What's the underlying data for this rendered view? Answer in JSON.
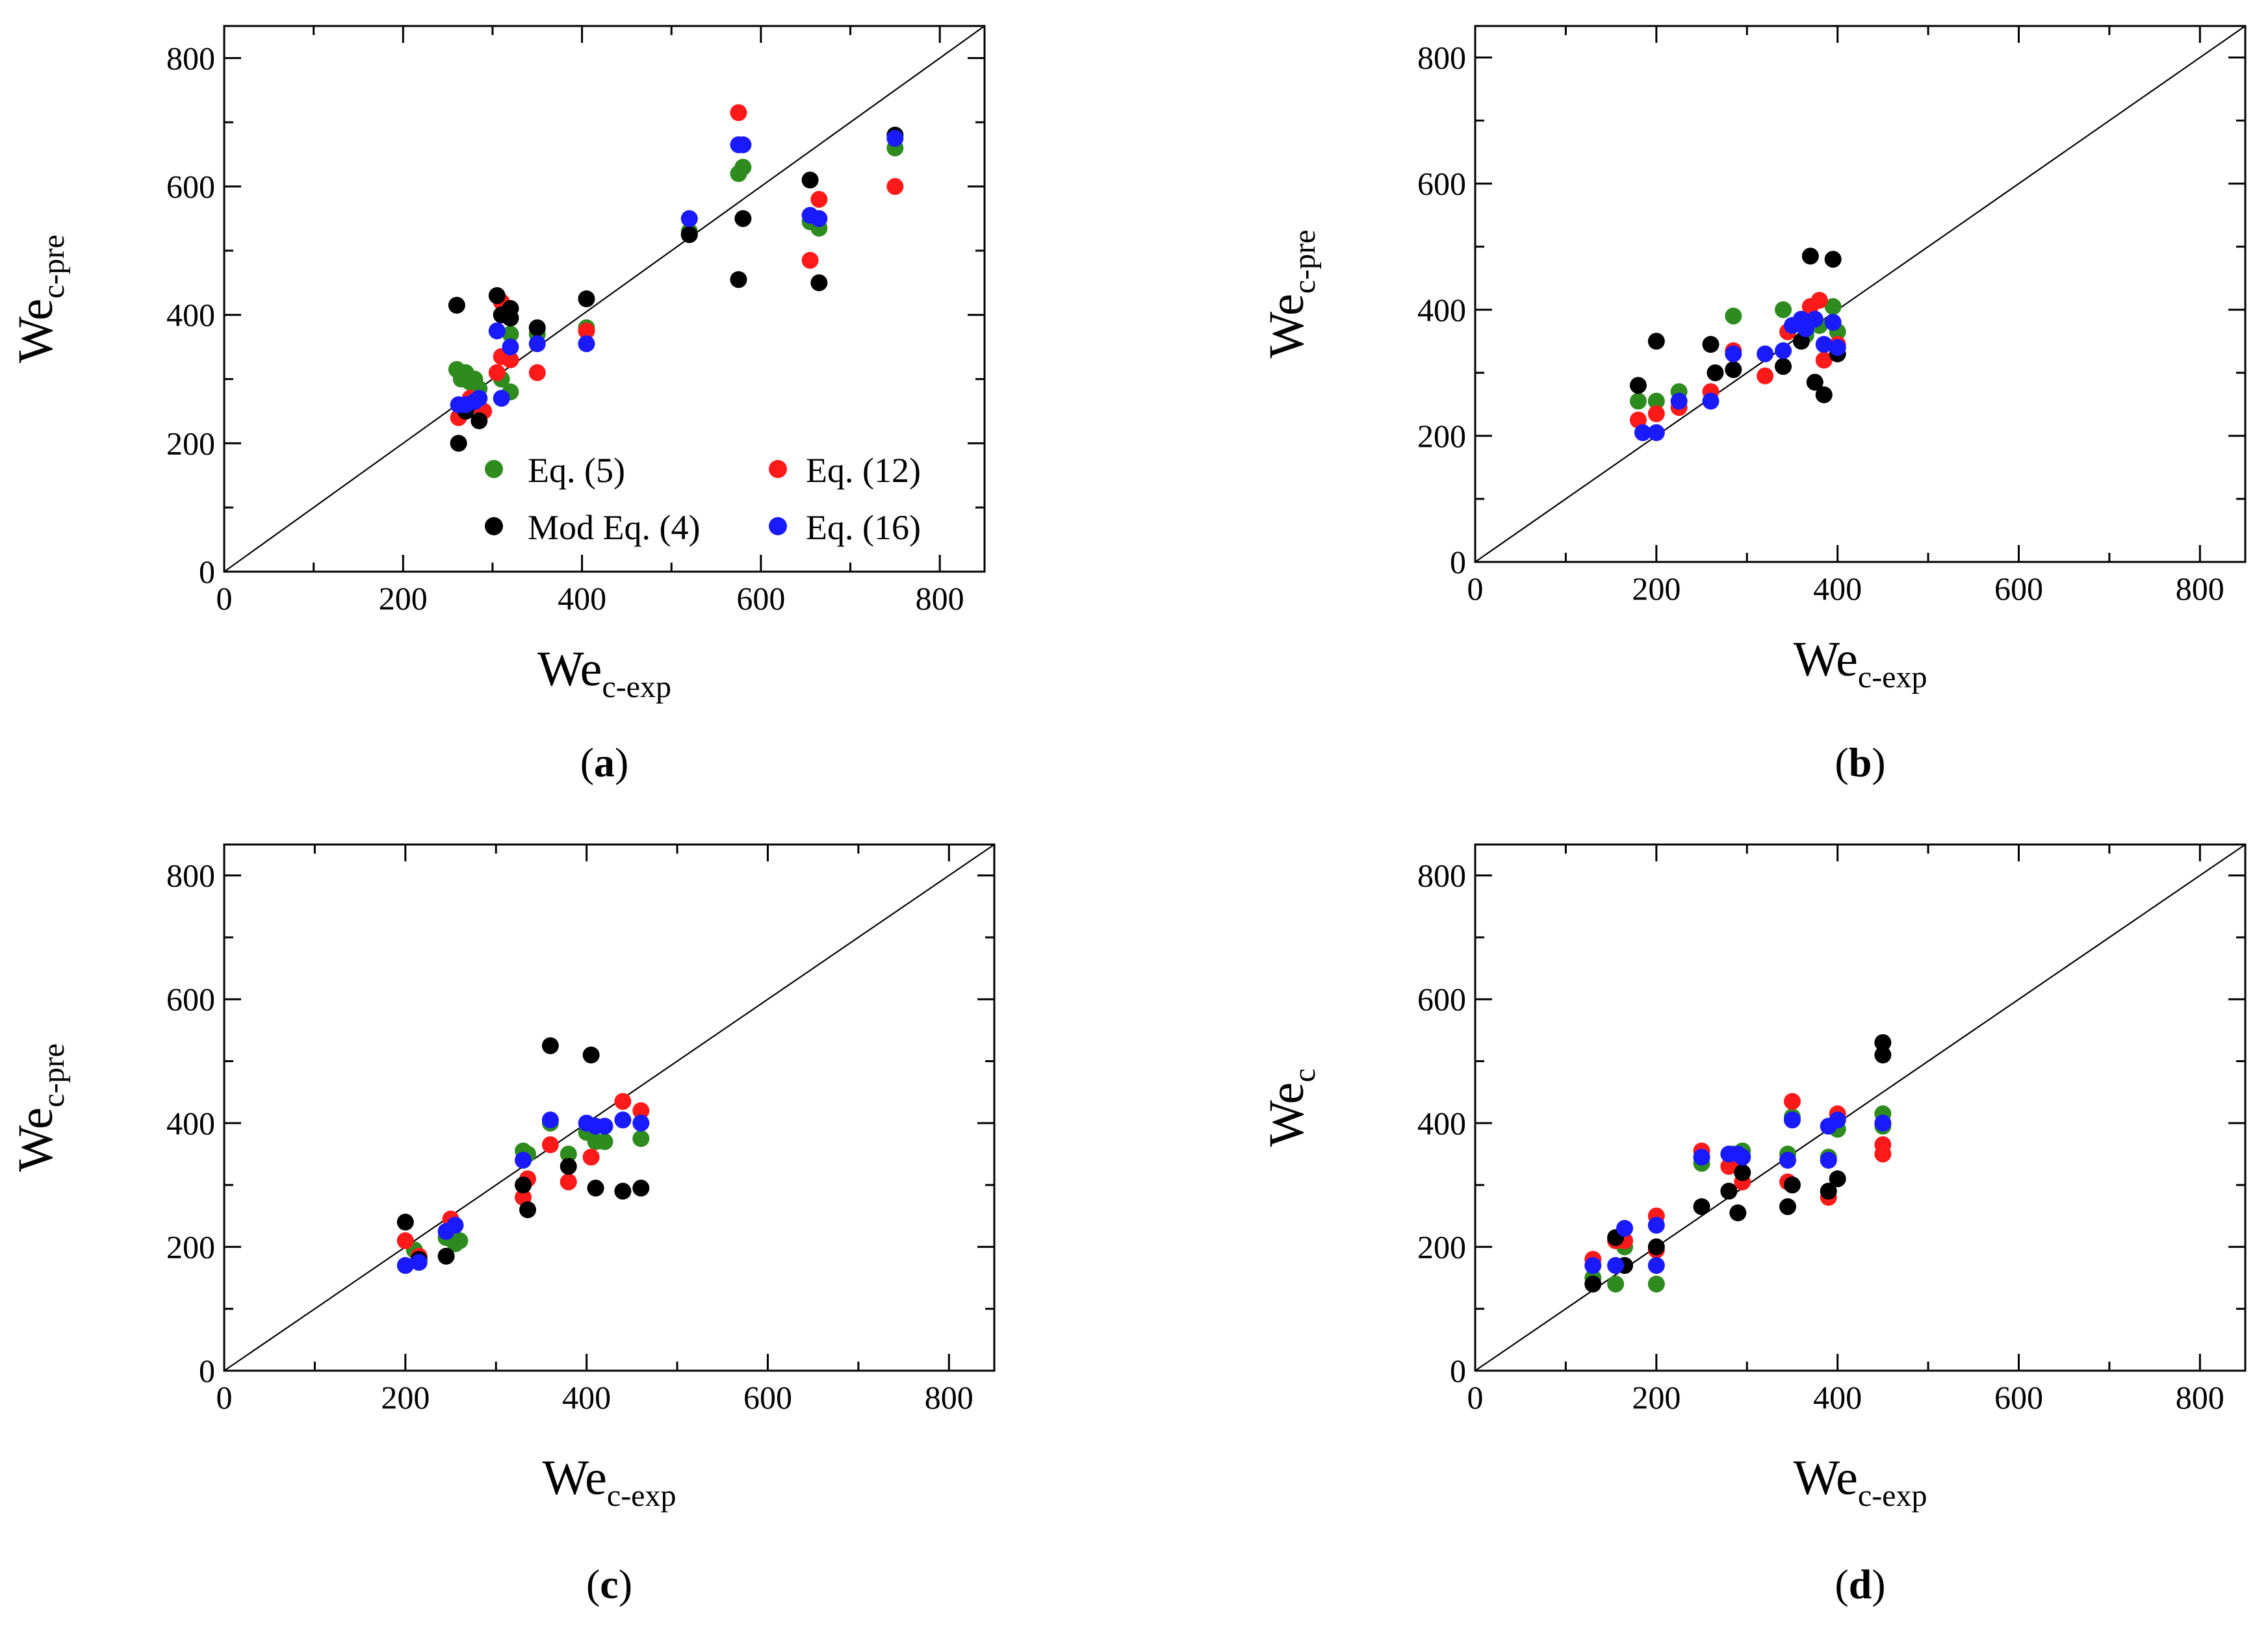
{
  "colors": {
    "eq5": "#2e8b1e",
    "eq12": "#ff1a1a",
    "mod4": "#000000",
    "eq16": "#1a1aff"
  },
  "legend": [
    {
      "key": "eq5",
      "label": "Eq. (5)"
    },
    {
      "key": "eq12",
      "label": "Eq. (12)"
    },
    {
      "key": "mod4",
      "label": "Mod Eq. (4)"
    },
    {
      "key": "eq16",
      "label": "Eq. (16)"
    }
  ],
  "chart_data": [
    {
      "type": "scatter",
      "panel_label": "a",
      "xlabel": {
        "main": "We",
        "sub": "c-exp"
      },
      "ylabel": {
        "main": "We",
        "sub": "c-pre"
      },
      "xlim": [
        0,
        850
      ],
      "ylim": [
        0,
        850
      ],
      "ticks": [
        "0",
        "200",
        "400",
        "600",
        "800"
      ],
      "legend_position": "bottom-right",
      "series": [
        {
          "name": "Eq. (5)",
          "key": "eq5",
          "points": [
            [
              260,
              315
            ],
            [
              265,
              300
            ],
            [
              270,
              310
            ],
            [
              275,
              295
            ],
            [
              280,
              300
            ],
            [
              285,
              285
            ],
            [
              310,
              300
            ],
            [
              320,
              280
            ],
            [
              320,
              370
            ],
            [
              350,
              370
            ],
            [
              405,
              380
            ],
            [
              520,
              530
            ],
            [
              575,
              620
            ],
            [
              580,
              630
            ],
            [
              655,
              545
            ],
            [
              665,
              535
            ],
            [
              750,
              660
            ]
          ]
        },
        {
          "name": "Eq. (12)",
          "key": "eq12",
          "points": [
            [
              262,
              240
            ],
            [
              275,
              270
            ],
            [
              280,
              260
            ],
            [
              290,
              250
            ],
            [
              305,
              310
            ],
            [
              310,
              335
            ],
            [
              310,
              420
            ],
            [
              320,
              330
            ],
            [
              350,
              310
            ],
            [
              405,
              375
            ],
            [
              520,
              525
            ],
            [
              575,
              715
            ],
            [
              655,
              485
            ],
            [
              665,
              580
            ],
            [
              750,
              600
            ]
          ]
        },
        {
          "name": "Mod Eq. (4)",
          "key": "mod4",
          "points": [
            [
              260,
              415
            ],
            [
              262,
              200
            ],
            [
              270,
              250
            ],
            [
              285,
              235
            ],
            [
              305,
              430
            ],
            [
              310,
              400
            ],
            [
              320,
              410
            ],
            [
              320,
              395
            ],
            [
              350,
              380
            ],
            [
              405,
              425
            ],
            [
              520,
              525
            ],
            [
              575,
              455
            ],
            [
              580,
              550
            ],
            [
              655,
              610
            ],
            [
              665,
              450
            ],
            [
              750,
              680
            ]
          ]
        },
        {
          "name": "Eq. (16)",
          "key": "eq16",
          "points": [
            [
              262,
              260
            ],
            [
              270,
              260
            ],
            [
              280,
              265
            ],
            [
              285,
              270
            ],
            [
              305,
              375
            ],
            [
              310,
              270
            ],
            [
              320,
              350
            ],
            [
              350,
              355
            ],
            [
              405,
              355
            ],
            [
              520,
              550
            ],
            [
              575,
              665
            ],
            [
              580,
              665
            ],
            [
              655,
              555
            ],
            [
              665,
              550
            ],
            [
              750,
              675
            ]
          ]
        }
      ]
    },
    {
      "type": "scatter",
      "panel_label": "b",
      "xlabel": {
        "main": "We",
        "sub": "c-exp"
      },
      "ylabel": {
        "main": "We",
        "sub": "c-pre"
      },
      "xlim": [
        0,
        850
      ],
      "ylim": [
        0,
        850
      ],
      "ticks": [
        "0",
        "200",
        "400",
        "600",
        "800"
      ],
      "series": [
        {
          "name": "Eq. (5)",
          "key": "eq5",
          "points": [
            [
              180,
              255
            ],
            [
              200,
              255
            ],
            [
              225,
              270
            ],
            [
              285,
              390
            ],
            [
              340,
              400
            ],
            [
              360,
              385
            ],
            [
              365,
              360
            ],
            [
              380,
              375
            ],
            [
              395,
              405
            ],
            [
              400,
              365
            ]
          ]
        },
        {
          "name": "Eq. (12)",
          "key": "eq12",
          "points": [
            [
              180,
              225
            ],
            [
              200,
              235
            ],
            [
              225,
              245
            ],
            [
              260,
              270
            ],
            [
              285,
              335
            ],
            [
              320,
              295
            ],
            [
              345,
              365
            ],
            [
              360,
              380
            ],
            [
              370,
              405
            ],
            [
              380,
              415
            ],
            [
              385,
              320
            ],
            [
              400,
              345
            ]
          ]
        },
        {
          "name": "Mod Eq. (4)",
          "key": "mod4",
          "points": [
            [
              180,
              280
            ],
            [
              200,
              350
            ],
            [
              260,
              345
            ],
            [
              265,
              300
            ],
            [
              285,
              305
            ],
            [
              340,
              310
            ],
            [
              360,
              350
            ],
            [
              370,
              485
            ],
            [
              375,
              285
            ],
            [
              385,
              265
            ],
            [
              395,
              480
            ],
            [
              400,
              330
            ]
          ]
        },
        {
          "name": "Eq. (16)",
          "key": "eq16",
          "points": [
            [
              185,
              205
            ],
            [
              200,
              205
            ],
            [
              225,
              255
            ],
            [
              260,
              255
            ],
            [
              285,
              330
            ],
            [
              320,
              330
            ],
            [
              340,
              335
            ],
            [
              350,
              375
            ],
            [
              360,
              385
            ],
            [
              365,
              370
            ],
            [
              375,
              385
            ],
            [
              385,
              345
            ],
            [
              395,
              380
            ],
            [
              400,
              340
            ]
          ]
        }
      ]
    },
    {
      "type": "scatter",
      "panel_label": "c",
      "xlabel": {
        "main": "We",
        "sub": "c-exp"
      },
      "ylabel": {
        "main": "We",
        "sub": "c-pre"
      },
      "xlim": [
        0,
        850
      ],
      "ylim": [
        0,
        850
      ],
      "ticks": [
        "0",
        "200",
        "400",
        "600",
        "800"
      ],
      "series": [
        {
          "name": "Eq. (5)",
          "key": "eq5",
          "points": [
            [
              210,
              195
            ],
            [
              245,
              215
            ],
            [
              255,
              205
            ],
            [
              260,
              210
            ],
            [
              330,
              355
            ],
            [
              335,
              350
            ],
            [
              360,
              400
            ],
            [
              380,
              350
            ],
            [
              400,
              385
            ],
            [
              410,
              370
            ],
            [
              420,
              370
            ],
            [
              460,
              375
            ]
          ]
        },
        {
          "name": "Eq. (12)",
          "key": "eq12",
          "points": [
            [
              200,
              210
            ],
            [
              215,
              185
            ],
            [
              250,
              245
            ],
            [
              330,
              280
            ],
            [
              335,
              310
            ],
            [
              360,
              365
            ],
            [
              380,
              305
            ],
            [
              405,
              345
            ],
            [
              440,
              435
            ],
            [
              460,
              420
            ]
          ]
        },
        {
          "name": "Mod Eq. (4)",
          "key": "mod4",
          "points": [
            [
              200,
              240
            ],
            [
              215,
              180
            ],
            [
              245,
              185
            ],
            [
              330,
              300
            ],
            [
              335,
              260
            ],
            [
              360,
              525
            ],
            [
              380,
              330
            ],
            [
              405,
              510
            ],
            [
              410,
              295
            ],
            [
              440,
              290
            ],
            [
              460,
              295
            ]
          ]
        },
        {
          "name": "Eq. (16)",
          "key": "eq16",
          "points": [
            [
              200,
              170
            ],
            [
              215,
              175
            ],
            [
              245,
              225
            ],
            [
              255,
              235
            ],
            [
              330,
              340
            ],
            [
              360,
              405
            ],
            [
              400,
              400
            ],
            [
              410,
              395
            ],
            [
              420,
              395
            ],
            [
              440,
              405
            ],
            [
              460,
              400
            ]
          ]
        }
      ]
    },
    {
      "type": "scatter",
      "panel_label": "d",
      "xlabel": {
        "main": "We",
        "sub": "c-exp"
      },
      "ylabel": {
        "main": "We",
        "sub": "c"
      },
      "xlim": [
        0,
        850
      ],
      "ylim": [
        0,
        850
      ],
      "ticks": [
        "0",
        "200",
        "400",
        "600",
        "800"
      ],
      "series": [
        {
          "name": "Eq. (5)",
          "key": "eq5",
          "points": [
            [
              130,
              150
            ],
            [
              155,
              140
            ],
            [
              165,
              200
            ],
            [
              200,
              140
            ],
            [
              250,
              335
            ],
            [
              285,
              350
            ],
            [
              295,
              355
            ],
            [
              345,
              350
            ],
            [
              350,
              410
            ],
            [
              390,
              345
            ],
            [
              400,
              390
            ],
            [
              450,
              415
            ],
            [
              450,
              395
            ]
          ]
        },
        {
          "name": "Eq. (12)",
          "key": "eq12",
          "points": [
            [
              130,
              180
            ],
            [
              155,
              210
            ],
            [
              165,
              210
            ],
            [
              200,
              195
            ],
            [
              200,
              250
            ],
            [
              250,
              355
            ],
            [
              280,
              330
            ],
            [
              290,
              335
            ],
            [
              295,
              305
            ],
            [
              345,
              305
            ],
            [
              350,
              435
            ],
            [
              390,
              280
            ],
            [
              400,
              415
            ],
            [
              450,
              365
            ],
            [
              450,
              350
            ]
          ]
        },
        {
          "name": "Mod Eq. (4)",
          "key": "mod4",
          "points": [
            [
              130,
              140
            ],
            [
              155,
              215
            ],
            [
              165,
              170
            ],
            [
              200,
              200
            ],
            [
              250,
              265
            ],
            [
              280,
              290
            ],
            [
              290,
              255
            ],
            [
              295,
              320
            ],
            [
              345,
              265
            ],
            [
              350,
              300
            ],
            [
              390,
              290
            ],
            [
              400,
              310
            ],
            [
              450,
              530
            ],
            [
              450,
              510
            ]
          ]
        },
        {
          "name": "Eq. (16)",
          "key": "eq16",
          "points": [
            [
              130,
              170
            ],
            [
              155,
              170
            ],
            [
              165,
              230
            ],
            [
              200,
              235
            ],
            [
              200,
              170
            ],
            [
              250,
              345
            ],
            [
              280,
              350
            ],
            [
              290,
              350
            ],
            [
              295,
              345
            ],
            [
              345,
              340
            ],
            [
              350,
              405
            ],
            [
              390,
              340
            ],
            [
              390,
              395
            ],
            [
              400,
              405
            ],
            [
              450,
              400
            ]
          ]
        }
      ]
    }
  ]
}
